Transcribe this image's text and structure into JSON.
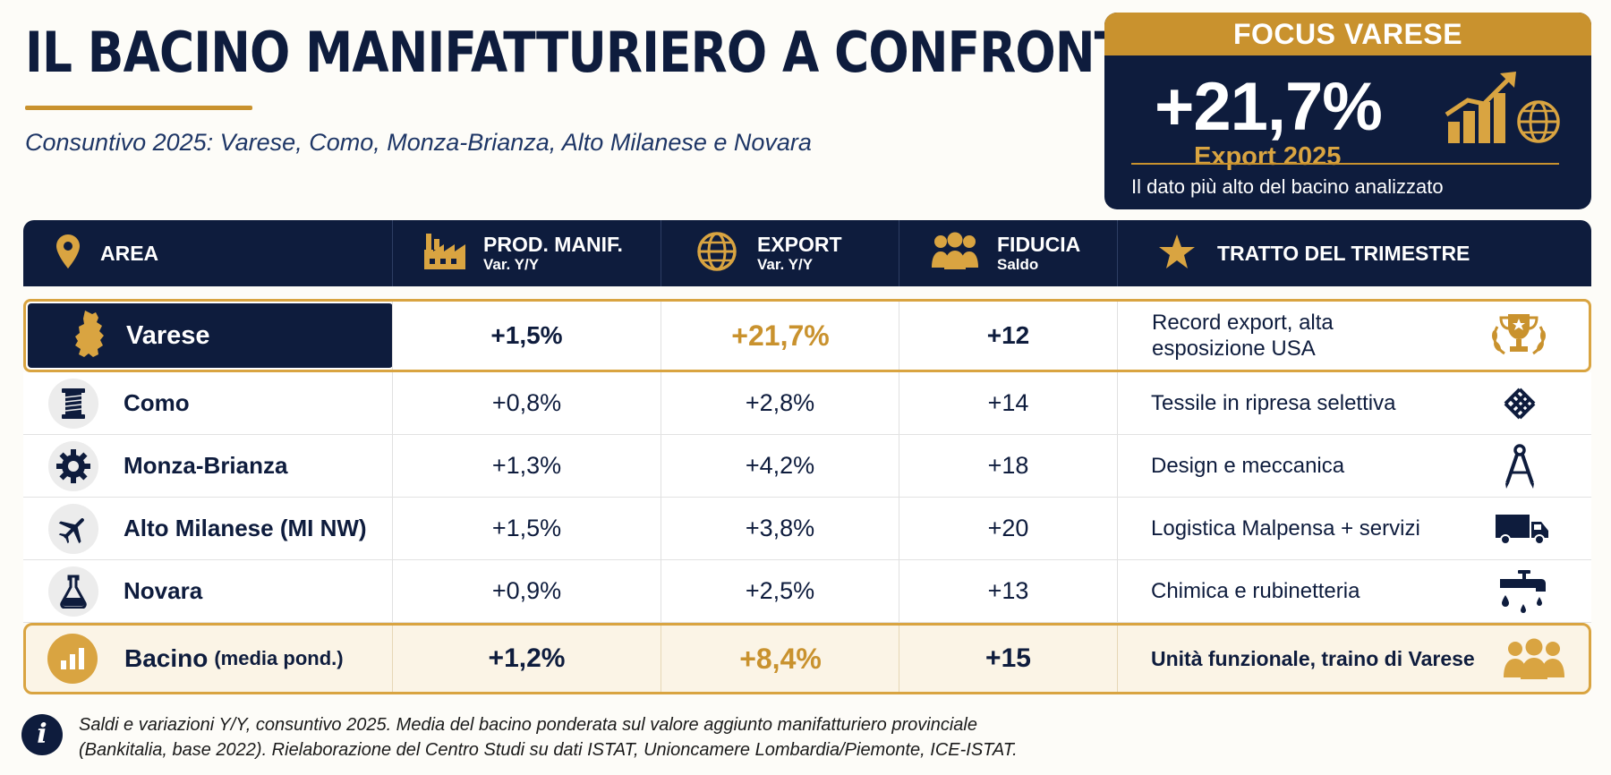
{
  "header": {
    "title": "IL BACINO MANIFATTURIERO A CONFRONTO",
    "subtitle": "Consuntivo 2025: Varese, Como, Monza-Brianza, Alto Milanese e Novara"
  },
  "focus": {
    "heading": "FOCUS VARESE",
    "value": "+21,7%",
    "label": "Export 2025",
    "note": "Il dato più alto del bacino analizzato",
    "icon": "growth-chart-globe-icon"
  },
  "table": {
    "columns": [
      {
        "label": "AREA",
        "sub": "",
        "icon": "map-pin-icon"
      },
      {
        "label": "PROD. MANIF.",
        "sub": "Var. Y/Y",
        "icon": "factory-icon"
      },
      {
        "label": "EXPORT",
        "sub": "Var. Y/Y",
        "icon": "globe-icon"
      },
      {
        "label": "FIDUCIA",
        "sub": "Saldo",
        "icon": "people-icon"
      },
      {
        "label": "TRATTO DEL TRIMESTRE",
        "sub": "",
        "icon": "star-icon"
      }
    ],
    "rows": [
      {
        "area": "Varese",
        "prod": "+1,5%",
        "export": "+21,7%",
        "fiducia": "+12",
        "trait_line1": "Record export, alta",
        "trait_line2": "esposizione USA",
        "area_icon": "varese-map-icon",
        "trait_icon": "trophy-icon",
        "highlight": true
      },
      {
        "area": "Como",
        "prod": "+0,8%",
        "export": "+2,8%",
        "fiducia": "+14",
        "trait": "Tessile in ripresa selettiva",
        "area_icon": "thread-spool-icon",
        "trait_icon": "woven-fabric-icon"
      },
      {
        "area": "Monza-Brianza",
        "prod": "+1,3%",
        "export": "+4,2%",
        "fiducia": "+18",
        "trait": "Design e meccanica",
        "area_icon": "gear-icon",
        "trait_icon": "compass-tool-icon"
      },
      {
        "area": "Alto Milanese (MI NW)",
        "prod": "+1,5%",
        "export": "+3,8%",
        "fiducia": "+20",
        "trait": "Logistica Malpensa + servizi",
        "area_icon": "airplane-icon",
        "trait_icon": "truck-icon"
      },
      {
        "area": "Novara",
        "prod": "+0,9%",
        "export": "+2,5%",
        "fiducia": "+13",
        "trait": "Chimica e rubinetteria",
        "area_icon": "flask-icon",
        "trait_icon": "faucet-icon"
      }
    ],
    "summary": {
      "area": "Bacino",
      "area_note": "(media pond.)",
      "prod": "+1,2%",
      "export": "+8,4%",
      "fiducia": "+15",
      "trait": "Unità funzionale, traino di Varese",
      "area_icon": "bar-chart-icon",
      "trait_icon": "group-icon"
    }
  },
  "footnote": {
    "line1": "Saldi e variazioni Y/Y, consuntivo 2025. Media del bacino ponderata sul valore aggiunto manifatturiero provinciale",
    "line2": "(Bankitalia, base 2022). Rielaborazione del Centro Studi su dati ISTAT, Unioncamere Lombardia/Piemonte, ICE-ISTAT.",
    "icon": "info-icon"
  },
  "colors": {
    "navy": "#0e1c3d",
    "gold": "#c9922e",
    "highlight_bg": "#fbf4e6"
  }
}
